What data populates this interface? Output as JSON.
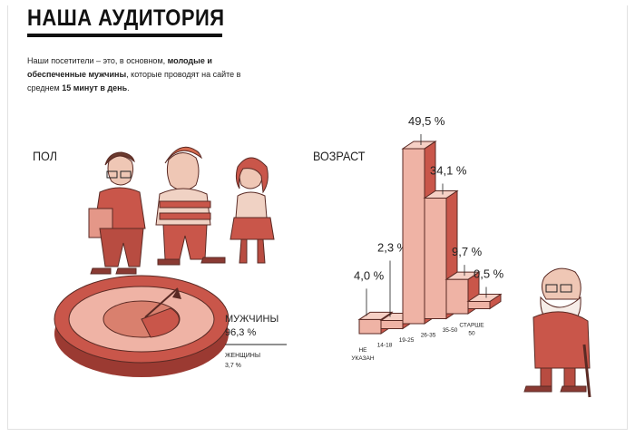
{
  "header": {
    "title": "НАША АУДИТОРИЯ"
  },
  "intro": {
    "part1": "Наши посетители – это, в основном, ",
    "bold1": "молодые и обеспеченные мужчины",
    "part2": ", которые проводят на сайте в среднем ",
    "bold2": "15 минут в день",
    "part3": "."
  },
  "gender": {
    "section_label": "ПОЛ",
    "male_label": "МУЖЧИНЫ",
    "male_value": "96,3 %",
    "female_label": "ЖЕНЩИНЫ",
    "female_value": "3,7 %"
  },
  "age": {
    "section_label": "ВОЗРАСТ"
  },
  "colors": {
    "accent": "#c9564a",
    "accent_light": "#efb3a5",
    "accent_dark": "#9b3a32",
    "ink": "#222222"
  },
  "chart_data": [
    {
      "type": "pie",
      "slices": [
        {
          "label": "МУЖЧИНЫ",
          "value": 96.3,
          "value_label": "96,3 %"
        },
        {
          "label": "ЖЕНЩИНЫ",
          "value": 3.7,
          "value_label": "3,7 %"
        }
      ]
    },
    {
      "type": "bar",
      "categories": [
        "НЕ УКАЗАН",
        "14-18",
        "19-25",
        "26-35",
        "35-50",
        "СТАРШЕ 50"
      ],
      "values": [
        4.0,
        2.3,
        49.5,
        34.1,
        9.7,
        0.5
      ],
      "value_labels": [
        "4,0 %",
        "2,3 %",
        "49,5 %",
        "34,1 %",
        "9,7 %",
        "0,5 %"
      ]
    }
  ]
}
